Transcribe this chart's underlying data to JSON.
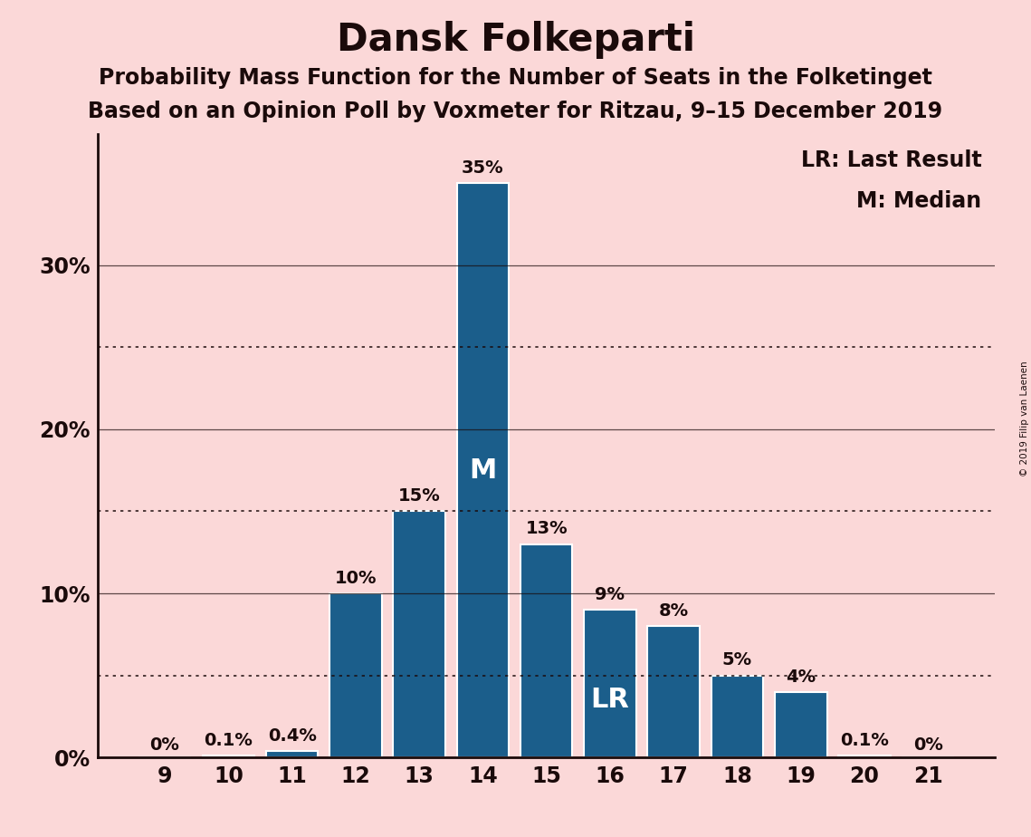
{
  "title": "Dansk Folkeparti",
  "subtitle1": "Probability Mass Function for the Number of Seats in the Folketinget",
  "subtitle2": "Based on an Opinion Poll by Voxmeter for Ritzau, 9–15 December 2019",
  "copyright": "© 2019 Filip van Laenen",
  "seats": [
    9,
    10,
    11,
    12,
    13,
    14,
    15,
    16,
    17,
    18,
    19,
    20,
    21
  ],
  "values": [
    0.0,
    0.1,
    0.4,
    10.0,
    15.0,
    35.0,
    13.0,
    9.0,
    8.0,
    5.0,
    4.0,
    0.1,
    0.0
  ],
  "labels": [
    "0%",
    "0.1%",
    "0.4%",
    "10%",
    "15%",
    "35%",
    "13%",
    "9%",
    "8%",
    "5%",
    "4%",
    "0.1%",
    "0%"
  ],
  "bar_color": "#1b5e8b",
  "background_color": "#fbd8d8",
  "text_color": "#1a0a0a",
  "median_seat": 14,
  "last_result_seat": 16,
  "yticks": [
    0,
    10,
    20,
    30
  ],
  "ytick_labels": [
    "0%",
    "10%",
    "20%",
    "30%"
  ],
  "dotted_lines": [
    5,
    15,
    25
  ],
  "ylim": [
    0,
    38
  ],
  "legend_line1": "LR: Last Result",
  "legend_line2": "M: Median",
  "title_fontsize": 30,
  "subtitle_fontsize": 17,
  "label_fontsize": 14,
  "tick_fontsize": 17,
  "inside_label_fontsize": 22,
  "legend_fontsize": 17,
  "bar_width": 0.82
}
